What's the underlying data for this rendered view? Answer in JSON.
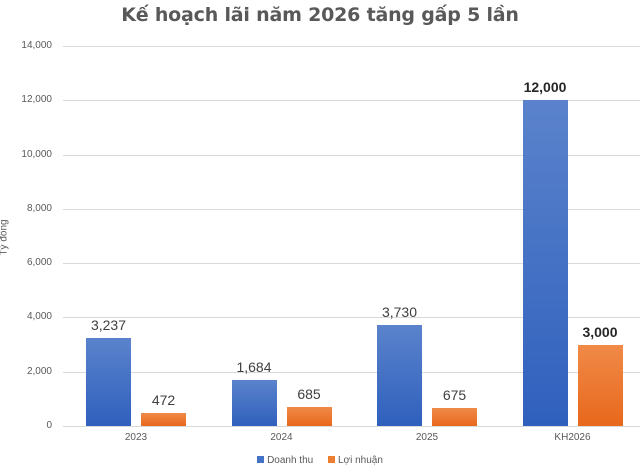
{
  "chart_data": {
    "type": "bar",
    "title": "Kế hoạch lãi năm 2026 tăng gấp 5 lần",
    "xlabel": "",
    "ylabel": "Tỷ đồng",
    "ylim": [
      0,
      14000
    ],
    "yticks": [
      "0",
      "2,000",
      "4,000",
      "6,000",
      "8,000",
      "10,000",
      "12,000",
      "14,000"
    ],
    "grid": true,
    "legend_position": "bottom",
    "categories": [
      "2023",
      "2024",
      "2025",
      "KH2026"
    ],
    "series": [
      {
        "name": "Doanh thu",
        "color": "#4472C4",
        "values": [
          3237,
          1684,
          3730,
          12000
        ],
        "labels": [
          "3,237",
          "1,684",
          "3,730",
          "12,000"
        ]
      },
      {
        "name": "Lợi nhuận",
        "color": "#ED7D31",
        "values": [
          472,
          685,
          675,
          3000
        ],
        "labels": [
          "472",
          "685",
          "675",
          "3,000"
        ]
      }
    ]
  }
}
